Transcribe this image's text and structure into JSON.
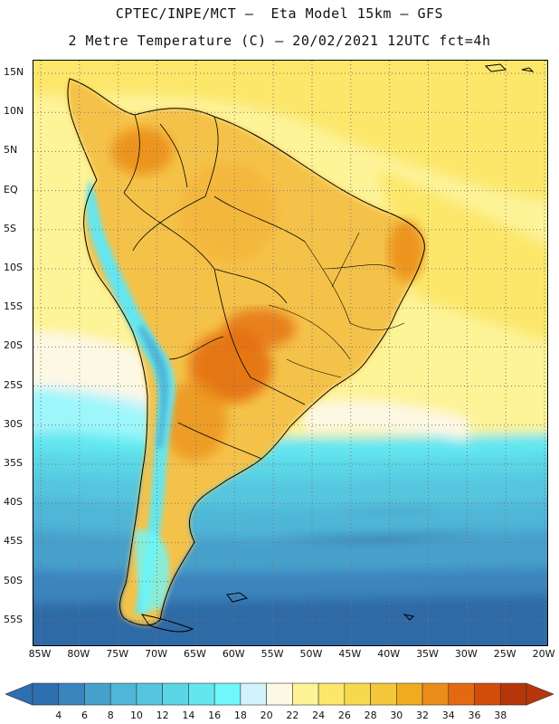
{
  "header": {
    "line1": "CPTEC/INPE/MCT –  Eta Model 15km – GFS",
    "line2": "2 Metre Temperature (C) – 20/02/2021 12UTC fct=4h"
  },
  "map": {
    "lat_labels": [
      "15N",
      "10N",
      "5N",
      "EQ",
      "5S",
      "10S",
      "15S",
      "20S",
      "25S",
      "30S",
      "35S",
      "40S",
      "45S",
      "50S",
      "55S"
    ],
    "lon_labels": [
      "85W",
      "80W",
      "75W",
      "70W",
      "65W",
      "60W",
      "55W",
      "50W",
      "45W",
      "40W",
      "35W",
      "30W",
      "25W",
      "20W"
    ]
  },
  "legend": {
    "levels": [
      "4",
      "6",
      "8",
      "10",
      "12",
      "14",
      "16",
      "18",
      "20",
      "22",
      "24",
      "26",
      "28",
      "30",
      "32",
      "34",
      "36",
      "38"
    ],
    "colors": [
      "#2e6fb0",
      "#3a84be",
      "#46a0cc",
      "#4fb6d8",
      "#56c6df",
      "#5ad6e6",
      "#64e6f0",
      "#6ff7f9",
      "#d2f3fb",
      "#fdf8e4",
      "#fdf397",
      "#fce76b",
      "#f8d94e",
      "#f4c63a",
      "#f0ac1e",
      "#eb8d19",
      "#e46a11",
      "#d34d0a",
      "#b5360a"
    ],
    "under_color": "#2e6fb0",
    "over_color": "#b5360a"
  }
}
